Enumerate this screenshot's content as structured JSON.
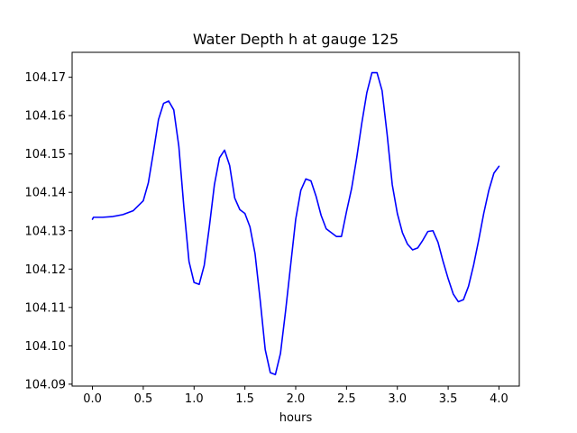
{
  "chart_data": {
    "type": "line",
    "title": "Water Depth h at gauge 125",
    "xlabel": "hours",
    "ylabel": "",
    "xlim": [
      -0.2,
      4.2
    ],
    "ylim": [
      104.0895,
      104.1765
    ],
    "xticks": [
      0.0,
      0.5,
      1.0,
      1.5,
      2.0,
      2.5,
      3.0,
      3.5,
      4.0
    ],
    "xtick_labels": [
      "0.0",
      "0.5",
      "1.0",
      "1.5",
      "2.0",
      "2.5",
      "3.0",
      "3.5",
      "4.0"
    ],
    "yticks": [
      104.09,
      104.1,
      104.11,
      104.12,
      104.13,
      104.14,
      104.15,
      104.16,
      104.17
    ],
    "ytick_labels": [
      "104.09",
      "104.10",
      "104.11",
      "104.12",
      "104.13",
      "104.14",
      "104.15",
      "104.16",
      "104.17"
    ],
    "grid": false,
    "legend": "none",
    "series": [
      {
        "color": "#0000ff",
        "x": [
          0.0,
          0.01,
          0.1,
          0.2,
          0.3,
          0.4,
          0.5,
          0.55,
          0.6,
          0.65,
          0.7,
          0.75,
          0.8,
          0.85,
          0.9,
          0.95,
          1.0,
          1.05,
          1.1,
          1.15,
          1.2,
          1.25,
          1.3,
          1.35,
          1.4,
          1.45,
          1.5,
          1.55,
          1.6,
          1.65,
          1.7,
          1.75,
          1.8,
          1.85,
          1.9,
          1.95,
          2.0,
          2.05,
          2.1,
          2.15,
          2.2,
          2.25,
          2.3,
          2.35,
          2.4,
          2.45,
          2.5,
          2.55,
          2.6,
          2.65,
          2.7,
          2.75,
          2.8,
          2.85,
          2.9,
          2.95,
          3.0,
          3.05,
          3.1,
          3.15,
          3.2,
          3.25,
          3.3,
          3.35,
          3.4,
          3.45,
          3.5,
          3.55,
          3.6,
          3.65,
          3.7,
          3.75,
          3.8,
          3.85,
          3.9,
          3.95,
          4.0
        ],
        "values": [
          104.133,
          104.1335,
          104.1335,
          104.1337,
          104.1342,
          104.1352,
          104.1378,
          104.1425,
          104.1505,
          104.159,
          104.1632,
          104.1638,
          104.1615,
          104.152,
          104.136,
          104.122,
          104.1165,
          104.116,
          104.121,
          104.131,
          104.142,
          104.149,
          104.151,
          104.147,
          104.1385,
          104.1355,
          104.1345,
          104.131,
          104.124,
          104.112,
          104.099,
          104.093,
          104.0925,
          104.098,
          104.109,
          104.121,
          104.133,
          104.1405,
          104.1435,
          104.143,
          104.139,
          104.134,
          104.1305,
          104.1295,
          104.1285,
          104.1285,
          104.135,
          104.141,
          104.149,
          104.158,
          104.166,
          104.1712,
          104.1712,
          104.1665,
          104.155,
          104.142,
          104.1345,
          104.1295,
          104.1265,
          104.125,
          104.1255,
          104.1275,
          104.1298,
          104.13,
          104.127,
          104.122,
          104.1175,
          104.1135,
          104.1115,
          104.112,
          104.1155,
          104.121,
          104.1275,
          104.1345,
          104.1405,
          104.145,
          104.1468
        ]
      }
    ]
  }
}
